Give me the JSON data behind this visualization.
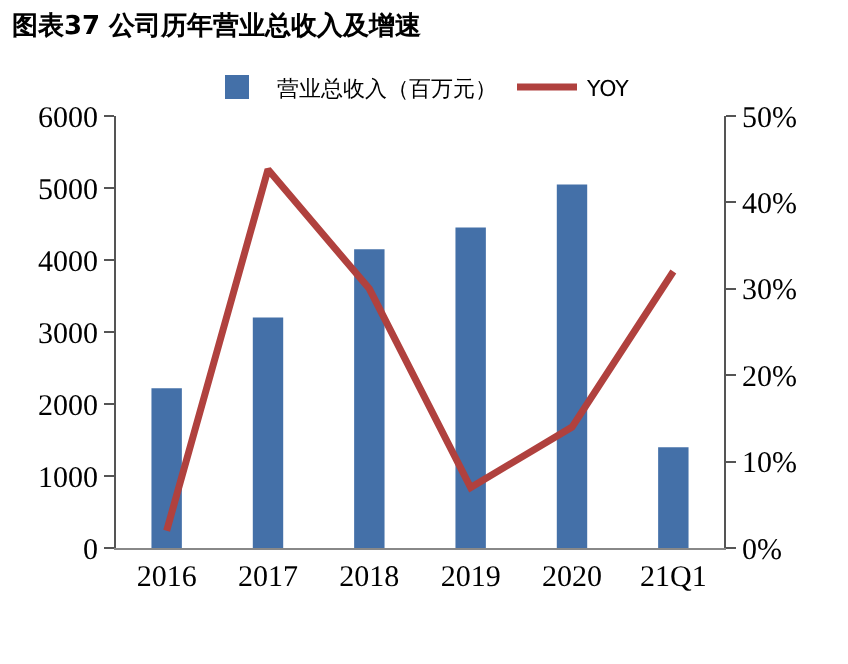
{
  "chart_data": {
    "type": "bar",
    "title": "图表37 公司历年营业总收入及增速",
    "categories": [
      "2016",
      "2017",
      "2018",
      "2019",
      "2020",
      "21Q1"
    ],
    "series": [
      {
        "name": "营业总收入（百万元）",
        "color": "#4470a8",
        "values": [
          2220,
          3200,
          4150,
          4450,
          5050,
          1400
        ]
      },
      {
        "name": "YOY",
        "type": "line",
        "axis": "y2",
        "color": "#b0413e",
        "values": [
          2,
          43.8,
          30,
          7,
          14,
          32
        ]
      }
    ],
    "ylim": [
      0,
      6000
    ],
    "yticks": [
      0,
      1000,
      2000,
      3000,
      4000,
      5000,
      6000
    ],
    "y2lim": [
      0,
      50
    ],
    "y2ticks": [
      {
        "value": 0,
        "label": "0%"
      },
      {
        "value": 10,
        "label": "10%"
      },
      {
        "value": 20,
        "label": "20%"
      },
      {
        "value": 30,
        "label": "30%"
      },
      {
        "value": 40,
        "label": "40%"
      },
      {
        "value": 50,
        "label": "50%"
      }
    ],
    "grid": false,
    "legend": "top",
    "marker": "none"
  }
}
